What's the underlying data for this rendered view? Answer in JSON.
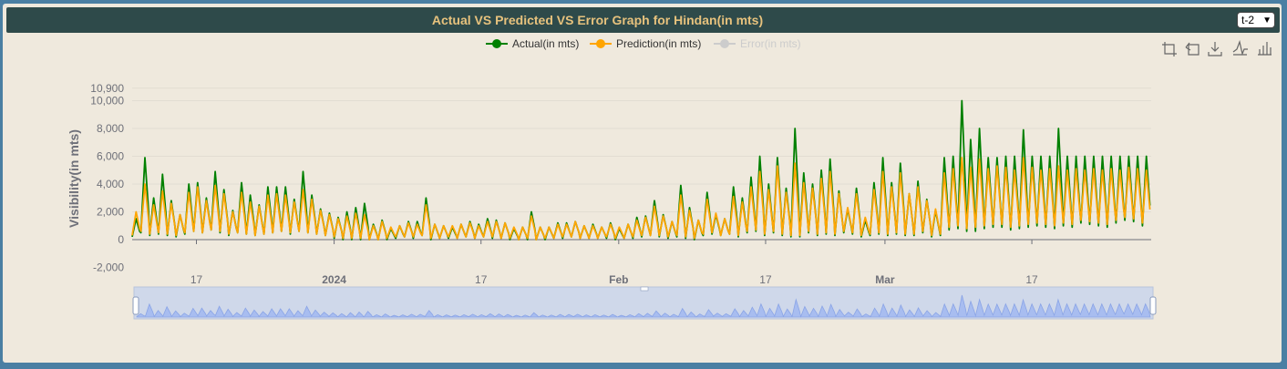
{
  "header": {
    "title": "Actual VS Predicted VS Error Graph for Hindan(in mts)",
    "selector_value": "t-2"
  },
  "toolbar": {
    "icons": [
      "zoom-icon",
      "zoom-reset-icon",
      "download-icon",
      "line-chart-icon",
      "bar-chart-icon"
    ]
  },
  "chart_data": {
    "type": "line",
    "ylabel": "Visibility(in mts)",
    "xlabel": "",
    "ylim": [
      -2000,
      10900
    ],
    "y_ticks": [
      "10,900",
      "10,000",
      "8,000",
      "6,000",
      "4,000",
      "2,000",
      "0",
      "-2,000"
    ],
    "x_ticks": [
      {
        "label": "17",
        "bold": false
      },
      {
        "label": "2024",
        "bold": true
      },
      {
        "label": "17",
        "bold": false
      },
      {
        "label": "Feb",
        "bold": true
      },
      {
        "label": "17",
        "bold": false
      },
      {
        "label": "Mar",
        "bold": true
      },
      {
        "label": "17",
        "bold": false
      }
    ],
    "x_range": [
      "2023-12-10",
      "2024-03-30"
    ],
    "legend_position": "top-center",
    "grid": true,
    "series": [
      {
        "name": "Actual(in mts)",
        "color": "#008000",
        "visible": true,
        "daily_peaks": [
          1500,
          5900,
          3000,
          4700,
          2800,
          1800,
          4000,
          4100,
          3000,
          4900,
          3600,
          2100,
          4100,
          3200,
          2500,
          3800,
          3800,
          3800,
          2900,
          4900,
          3200,
          2200,
          1900,
          1600,
          2000,
          2300,
          2600,
          1100,
          1400,
          800,
          1000,
          1300,
          1300,
          3000,
          1100,
          1000,
          900,
          1100,
          1300,
          1100,
          1500,
          1400,
          1200,
          800,
          900,
          2000,
          900,
          900,
          1200,
          1200,
          1300,
          1000,
          1100,
          900,
          1200,
          800,
          1100,
          1600,
          1700,
          2800,
          1800,
          1300,
          3900,
          2300,
          1400,
          3400,
          1800,
          1500,
          3800,
          3000,
          4500,
          6000,
          4000,
          5900,
          3700,
          8000,
          4800,
          4000,
          5000,
          5800,
          3500,
          2200,
          3700,
          1400,
          4100,
          5900,
          4100,
          5500,
          3300,
          4200,
          2900,
          2100,
          5900,
          6000,
          10000,
          7200,
          8000,
          5900,
          5900,
          6000,
          6000,
          7900,
          6000,
          6000,
          6000,
          8000,
          6000,
          6000,
          6000,
          6000,
          6000,
          6000,
          6000,
          6000,
          6000,
          6000
        ],
        "daily_troughs": [
          200,
          500,
          300,
          400,
          300,
          200,
          400,
          600,
          500,
          700,
          500,
          300,
          500,
          400,
          300,
          400,
          500,
          600,
          400,
          600,
          500,
          400,
          300,
          100,
          0,
          0,
          0,
          0,
          0,
          0,
          100,
          200,
          100,
          300,
          0,
          100,
          100,
          100,
          200,
          100,
          200,
          100,
          100,
          0,
          0,
          0,
          0,
          0,
          100,
          100,
          200,
          100,
          100,
          100,
          100,
          0,
          100,
          100,
          200,
          300,
          200,
          100,
          200,
          100,
          0,
          300,
          400,
          300,
          400,
          200,
          500,
          600,
          300,
          500,
          300,
          200,
          200,
          500,
          300,
          400,
          300,
          500,
          400,
          200,
          300,
          400,
          300,
          400,
          300,
          300,
          500,
          200,
          300,
          700,
          800,
          600,
          600,
          800,
          900,
          900,
          700,
          800,
          900,
          1000,
          900,
          800,
          1000,
          900,
          1200,
          1100,
          1000,
          900,
          1200,
          1400,
          1300,
          1000
        ]
      },
      {
        "name": "Prediction(in mts)",
        "color": "#ffa500",
        "visible": true,
        "daily_peaks": [
          2000,
          4000,
          2500,
          3500,
          2600,
          1800,
          3400,
          3800,
          2800,
          3900,
          3300,
          2000,
          3400,
          2700,
          2400,
          3200,
          3300,
          3200,
          2700,
          3600,
          2900,
          2100,
          1800,
          1500,
          1700,
          1900,
          1800,
          1000,
          1300,
          900,
          1000,
          1200,
          1100,
          2500,
          1100,
          1000,
          1000,
          1100,
          1200,
          1000,
          1300,
          1300,
          1200,
          900,
          900,
          1700,
          900,
          900,
          1100,
          1100,
          1300,
          1000,
          1000,
          900,
          1100,
          900,
          1100,
          1400,
          1600,
          2400,
          1700,
          1300,
          3200,
          2100,
          1400,
          2900,
          1900,
          1500,
          3100,
          2700,
          3800,
          4900,
          3600,
          5300,
          3400,
          5500,
          4100,
          3700,
          4400,
          4900,
          3300,
          2300,
          3300,
          1600,
          3600,
          4900,
          3800,
          4800,
          3300,
          3800,
          2800,
          2200,
          4800,
          5100,
          5900,
          5200,
          5800,
          5100,
          5300,
          5200,
          5000,
          5900,
          5200,
          5000,
          5100,
          5300,
          5000,
          5100,
          5000,
          5100,
          5000,
          5100,
          5000,
          5200,
          5100,
          5000
        ],
        "daily_troughs": [
          300,
          600,
          400,
          500,
          400,
          300,
          500,
          600,
          500,
          700,
          600,
          400,
          500,
          400,
          300,
          400,
          500,
          600,
          500,
          600,
          500,
          400,
          300,
          200,
          100,
          100,
          100,
          0,
          0,
          100,
          200,
          200,
          200,
          300,
          100,
          100,
          200,
          100,
          200,
          100,
          200,
          200,
          100,
          100,
          0,
          100,
          0,
          100,
          100,
          200,
          200,
          100,
          100,
          100,
          200,
          100,
          100,
          200,
          300,
          300,
          300,
          200,
          300,
          200,
          100,
          400,
          500,
          300,
          400,
          300,
          600,
          700,
          400,
          600,
          400,
          300,
          300,
          600,
          400,
          500,
          400,
          600,
          500,
          300,
          400,
          500,
          400,
          500,
          400,
          400,
          600,
          300,
          400,
          900,
          1000,
          800,
          900,
          1000,
          1100,
          1100,
          900,
          1000,
          1100,
          1200,
          1100,
          1000,
          1200,
          1100,
          1400,
          1300,
          1200,
          1100,
          1400,
          1600,
          1500,
          1200
        ]
      },
      {
        "name": "Error(in mts)",
        "color": "#cccccc",
        "visible": false,
        "daily_peaks": [],
        "daily_troughs": []
      }
    ]
  }
}
